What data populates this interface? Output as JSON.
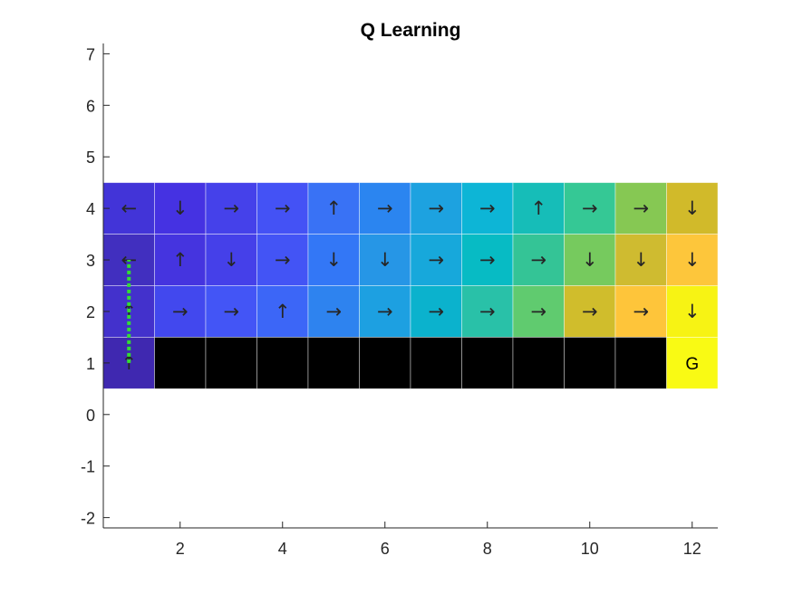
{
  "chart_data": {
    "type": "heatmap",
    "title": "Q Learning",
    "xlim": [
      0.5,
      12.5
    ],
    "ylim": [
      -2.2,
      7.2
    ],
    "xticks": [
      2,
      4,
      6,
      8,
      10,
      12
    ],
    "yticks": [
      7,
      6,
      5,
      4,
      3,
      2,
      1,
      0,
      -1,
      -2
    ],
    "grid": false,
    "colormap": "parula",
    "cliff_color": "#000000",
    "grid_line_color": "#ffffff",
    "path_color": "#33dd33",
    "goal_label": "G",
    "rows": [
      {
        "y": 4,
        "cells": [
          {
            "x": 1,
            "color": "#4234d8",
            "arrow": "←"
          },
          {
            "x": 2,
            "color": "#4532e2",
            "arrow": "↓"
          },
          {
            "x": 3,
            "color": "#4541ea",
            "arrow": "→"
          },
          {
            "x": 4,
            "color": "#4452f5",
            "arrow": "→"
          },
          {
            "x": 5,
            "color": "#3972f5",
            "arrow": "↑"
          },
          {
            "x": 6,
            "color": "#2b85f0",
            "arrow": "→"
          },
          {
            "x": 7,
            "color": "#1da2e0",
            "arrow": "→"
          },
          {
            "x": 8,
            "color": "#0db5d6",
            "arrow": "→"
          },
          {
            "x": 9,
            "color": "#16bdb8",
            "arrow": "↑"
          },
          {
            "x": 10,
            "color": "#35c895",
            "arrow": "→"
          },
          {
            "x": 11,
            "color": "#86c853",
            "arrow": "→"
          },
          {
            "x": 12,
            "color": "#d1ba2a",
            "arrow": "↓"
          }
        ]
      },
      {
        "y": 3,
        "cells": [
          {
            "x": 1,
            "color": "#412fbf",
            "arrow": "←"
          },
          {
            "x": 2,
            "color": "#4534df",
            "arrow": "↑"
          },
          {
            "x": 3,
            "color": "#4540e9",
            "arrow": "↓"
          },
          {
            "x": 4,
            "color": "#4354f5",
            "arrow": "→"
          },
          {
            "x": 5,
            "color": "#3377f6",
            "arrow": "↓"
          },
          {
            "x": 6,
            "color": "#2696e6",
            "arrow": "↓"
          },
          {
            "x": 7,
            "color": "#17a8db",
            "arrow": "→"
          },
          {
            "x": 8,
            "color": "#07bbc4",
            "arrow": "→"
          },
          {
            "x": 9,
            "color": "#34c496",
            "arrow": "→"
          },
          {
            "x": 10,
            "color": "#76ca5e",
            "arrow": "↓"
          },
          {
            "x": 11,
            "color": "#cfbb30",
            "arrow": "↓"
          },
          {
            "x": 12,
            "color": "#fdc63b",
            "arrow": "↓"
          }
        ]
      },
      {
        "y": 2,
        "cells": [
          {
            "x": 1,
            "color": "#4331cc",
            "arrow": "↑"
          },
          {
            "x": 2,
            "color": "#4248ee",
            "arrow": "→"
          },
          {
            "x": 3,
            "color": "#4355f6",
            "arrow": "→"
          },
          {
            "x": 4,
            "color": "#3c66f7",
            "arrow": "↑"
          },
          {
            "x": 5,
            "color": "#2e83ef",
            "arrow": "→"
          },
          {
            "x": 6,
            "color": "#1da0e1",
            "arrow": "→"
          },
          {
            "x": 7,
            "color": "#0bb2cd",
            "arrow": "→"
          },
          {
            "x": 8,
            "color": "#29c1a8",
            "arrow": "→"
          },
          {
            "x": 9,
            "color": "#60cb6f",
            "arrow": "→"
          },
          {
            "x": 10,
            "color": "#d0bd2c",
            "arrow": "→"
          },
          {
            "x": 11,
            "color": "#fec53a",
            "arrow": "→"
          },
          {
            "x": 12,
            "color": "#f7f314",
            "arrow": "↓"
          }
        ]
      },
      {
        "y": 1,
        "cells": [
          {
            "x": 1,
            "color": "#3f28b0",
            "arrow": "↑"
          },
          {
            "x": 2,
            "color": "#000000",
            "arrow": ""
          },
          {
            "x": 3,
            "color": "#000000",
            "arrow": ""
          },
          {
            "x": 4,
            "color": "#000000",
            "arrow": ""
          },
          {
            "x": 5,
            "color": "#000000",
            "arrow": ""
          },
          {
            "x": 6,
            "color": "#000000",
            "arrow": ""
          },
          {
            "x": 7,
            "color": "#000000",
            "arrow": ""
          },
          {
            "x": 8,
            "color": "#000000",
            "arrow": ""
          },
          {
            "x": 9,
            "color": "#000000",
            "arrow": ""
          },
          {
            "x": 10,
            "color": "#000000",
            "arrow": ""
          },
          {
            "x": 11,
            "color": "#000000",
            "arrow": ""
          },
          {
            "x": 12,
            "color": "#f9fa14",
            "arrow": "",
            "goal": true
          }
        ]
      }
    ],
    "path": {
      "x": [
        1,
        1
      ],
      "y": [
        1,
        3
      ]
    }
  }
}
